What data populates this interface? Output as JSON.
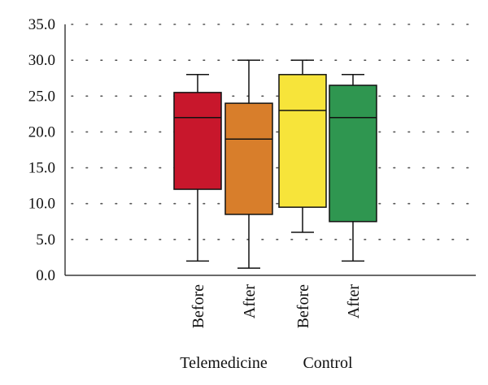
{
  "chart_data": {
    "type": "box",
    "title": "",
    "xlabel": "",
    "ylabel": "",
    "ylim": [
      0,
      35
    ],
    "yticks": [
      "0.0",
      "5.0",
      "10.0",
      "15.0",
      "20.0",
      "25.0",
      "30.0",
      "35.0"
    ],
    "grid": "horizontal dotted",
    "legend": "none",
    "groups": [
      "Telemedicine",
      "Control"
    ],
    "categories": [
      "Before",
      "After",
      "Before",
      "After"
    ],
    "boxes": [
      {
        "group": "Telemedicine",
        "label": "Before",
        "min": 2,
        "q1": 12,
        "median": 22,
        "q3": 25.5,
        "max": 28,
        "color": "#c8172c"
      },
      {
        "group": "Telemedicine",
        "label": "After",
        "min": 1,
        "q1": 8.5,
        "median": 19,
        "q3": 24,
        "max": 30,
        "color": "#d87e2b"
      },
      {
        "group": "Control",
        "label": "Before",
        "min": 6,
        "q1": 9.5,
        "median": 23,
        "q3": 28,
        "max": 30,
        "color": "#f7e43a"
      },
      {
        "group": "Control",
        "label": "After",
        "min": 2,
        "q1": 7.5,
        "median": 22,
        "q3": 26.5,
        "max": 28,
        "color": "#2f9650"
      }
    ]
  }
}
